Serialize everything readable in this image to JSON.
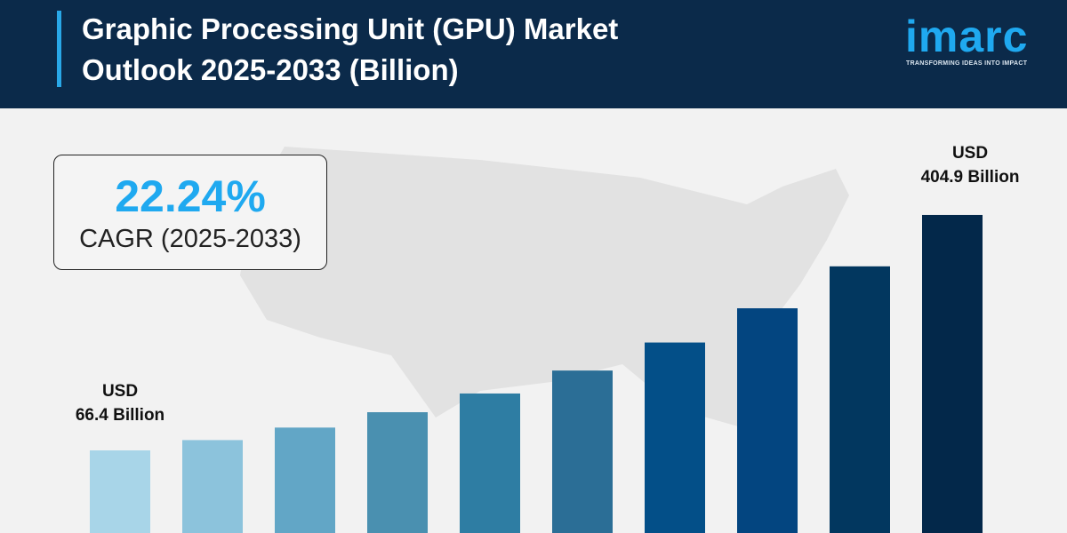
{
  "header": {
    "title_line1": "Graphic Processing Unit (GPU) Market",
    "title_line2": "Outlook 2025-2033 (Billion)",
    "background": "#0b2a4a",
    "accent": "#29a8e8"
  },
  "logo": {
    "name": "imarc",
    "tagline": "TRANSFORMING IDEAS INTO IMPACT",
    "color": "#1fa9f0"
  },
  "cagr": {
    "value": "22.24%",
    "label": "CAGR (2025-2033)"
  },
  "chart_data": {
    "type": "bar",
    "title": "Graphic Processing Unit (GPU) Market Outlook 2025-2033 (Billion)",
    "values": [
      66.4,
      81.2,
      99.2,
      121.3,
      148.2,
      181.2,
      221.5,
      270.7,
      331.0,
      404.9
    ],
    "colors": [
      "#a8d5e8",
      "#8cc3dc",
      "#62a6c6",
      "#4a90b0",
      "#2e7da3",
      "#2b6e96",
      "#034f88",
      "#034580",
      "#02375f",
      "#03284a"
    ],
    "data_labels": {
      "first": {
        "line1": "USD",
        "line2": "66.4 Billion"
      },
      "last": {
        "line1": "USD",
        "line2": "404.9 Billion"
      }
    },
    "grid": false,
    "legend": "none"
  }
}
